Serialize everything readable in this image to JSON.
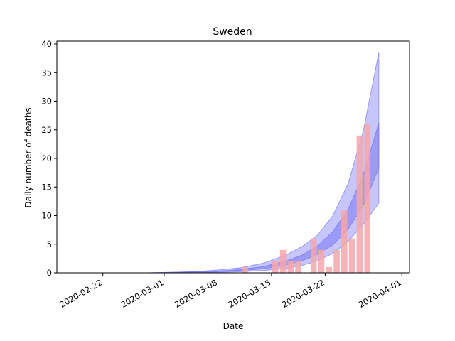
{
  "chart_data": {
    "type": "bar",
    "title": "Sweden",
    "xlabel": "Date",
    "ylabel": "Daily number of deaths",
    "ylim": [
      0,
      40.5
    ],
    "yticks": [
      0,
      5,
      10,
      15,
      20,
      25,
      30,
      35,
      40
    ],
    "xlim": [
      "2020-02-16",
      "2020-04-02"
    ],
    "xticks": [
      "2020-02-22",
      "2020-03-01",
      "2020-03-08",
      "2020-03-15",
      "2020-03-22",
      "2020-04-01"
    ],
    "grid": false,
    "colors": {
      "bars": "#f4a6ab",
      "band_outer": "#b3b3f8",
      "band_inner": "#8c8cf6",
      "line": "#6a6af0"
    },
    "series": [
      {
        "kind": "bar",
        "x": [
          "2020-03-11",
          "2020-03-15",
          "2020-03-16",
          "2020-03-17",
          "2020-03-18",
          "2020-03-20",
          "2020-03-21",
          "2020-03-22",
          "2020-03-23",
          "2020-03-24",
          "2020-03-25",
          "2020-03-26",
          "2020-03-27"
        ],
        "values": [
          1,
          2,
          4,
          2,
          2,
          6,
          4,
          1,
          4,
          11,
          6,
          24,
          26
        ]
      },
      {
        "kind": "band",
        "x": [
          "2020-02-19",
          "2020-02-22",
          "2020-02-25",
          "2020-02-28",
          "2020-03-02",
          "2020-03-05",
          "2020-03-08",
          "2020-03-11",
          "2020-03-14",
          "2020-03-17",
          "2020-03-19",
          "2020-03-21",
          "2020-03-23",
          "2020-03-25",
          "2020-03-27",
          "2020-03-29"
        ],
        "lower": [
          0,
          0,
          0,
          0,
          0,
          0,
          0.1,
          0.2,
          0.4,
          0.8,
          1.3,
          2.1,
          3.4,
          5.5,
          8.5,
          12.2
        ],
        "upper": [
          0,
          0,
          0,
          0,
          0.1,
          0.2,
          0.5,
          0.9,
          1.7,
          3.2,
          4.6,
          6.6,
          10.0,
          15.6,
          25.0,
          38.6
        ]
      },
      {
        "kind": "band",
        "x": [
          "2020-02-19",
          "2020-02-22",
          "2020-02-25",
          "2020-02-28",
          "2020-03-02",
          "2020-03-05",
          "2020-03-08",
          "2020-03-11",
          "2020-03-14",
          "2020-03-17",
          "2020-03-19",
          "2020-03-21",
          "2020-03-23",
          "2020-03-25",
          "2020-03-27",
          "2020-03-29"
        ],
        "lower": [
          0,
          0,
          0,
          0,
          0,
          0.1,
          0.2,
          0.4,
          0.7,
          1.4,
          2.1,
          3.2,
          4.9,
          7.6,
          11.9,
          18.3
        ],
        "upper": [
          0,
          0,
          0,
          0,
          0.1,
          0.2,
          0.3,
          0.6,
          1.1,
          2.1,
          3.1,
          4.7,
          7.2,
          11.1,
          17.3,
          26.2
        ]
      }
    ]
  }
}
